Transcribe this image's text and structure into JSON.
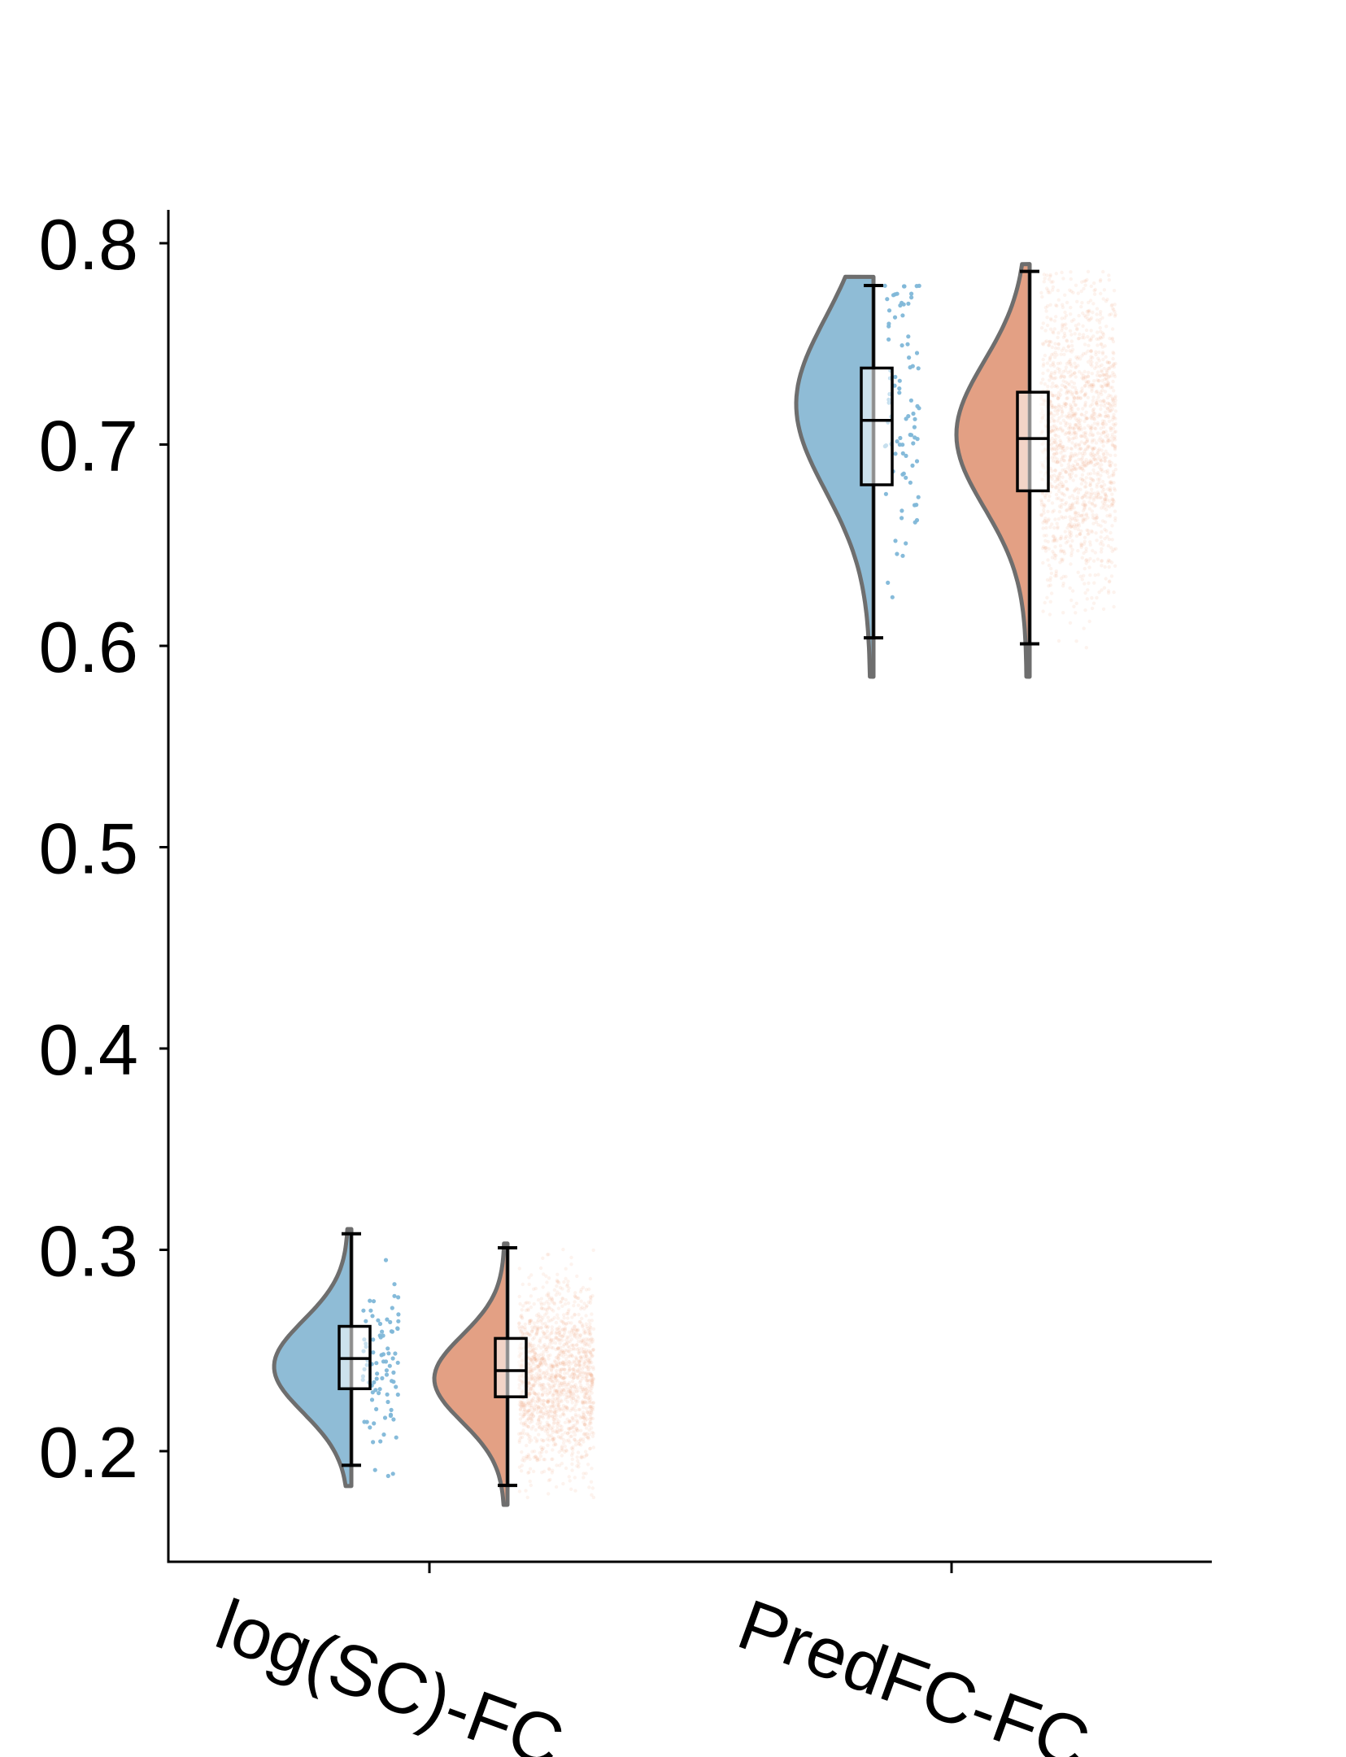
{
  "chart_data": {
    "type": "raincloud",
    "title": "",
    "xlabel": "",
    "ylabel": "",
    "ylim": [
      0.145,
      0.818
    ],
    "yticks": [
      0.2,
      0.3,
      0.4,
      0.5,
      0.6,
      0.7,
      0.8
    ],
    "ytick_labels": [
      "0.2",
      "0.3",
      "0.4",
      "0.5",
      "0.6",
      "0.7",
      "0.8"
    ],
    "categories": [
      "log(SC)-FC",
      "PredFC-FC"
    ],
    "legend": "none",
    "grid": false,
    "series": [
      {
        "color": "#8fbcd6",
        "point_color": "#7fb7d8",
        "points": "sparse",
        "groups": [
          {
            "category": "log(SC)-FC",
            "min": 0.193,
            "q1": 0.231,
            "median": 0.246,
            "q3": 0.262,
            "max": 0.308,
            "density_mode": 0.242
          },
          {
            "category": "PredFC-FC",
            "min": 0.604,
            "q1": 0.68,
            "median": 0.712,
            "q3": 0.738,
            "max": 0.779,
            "density_mode": 0.72
          }
        ]
      },
      {
        "color": "#e3a084",
        "point_color": "#f2a07e",
        "points": "dense",
        "groups": [
          {
            "category": "log(SC)-FC",
            "min": 0.183,
            "q1": 0.227,
            "median": 0.24,
            "q3": 0.256,
            "max": 0.301,
            "density_mode": 0.236
          },
          {
            "category": "PredFC-FC",
            "min": 0.601,
            "q1": 0.677,
            "median": 0.703,
            "q3": 0.726,
            "max": 0.786,
            "density_mode": 0.705
          }
        ]
      }
    ]
  }
}
